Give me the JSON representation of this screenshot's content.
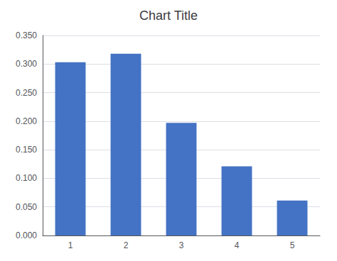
{
  "chart_data": {
    "type": "bar",
    "title": "Chart Title",
    "categories": [
      1,
      2,
      3,
      4,
      5
    ],
    "values": [
      0.303,
      0.318,
      0.197,
      0.121,
      0.061
    ],
    "color": "#4472C4",
    "ylim": [
      0,
      0.35
    ],
    "yticks": [
      {
        "value": 0,
        "label": "0.000"
      },
      {
        "value": 0.05,
        "label": "0.050"
      },
      {
        "value": 0.1,
        "label": "0.100"
      },
      {
        "value": 0.15,
        "label": "0.150"
      },
      {
        "value": 0.2,
        "label": "0.200"
      },
      {
        "value": 0.25,
        "label": "0.250"
      },
      {
        "value": 0.3,
        "label": "0.300"
      },
      {
        "value": 0.35,
        "label": "0.350"
      }
    ],
    "grid": true
  }
}
